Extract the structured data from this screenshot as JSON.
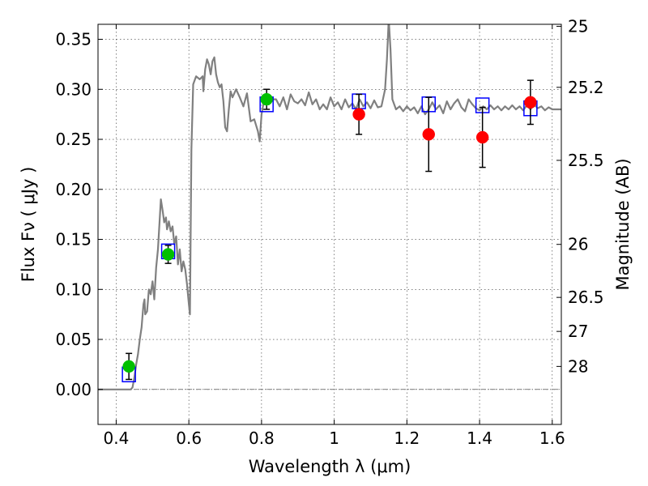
{
  "chart_data": {
    "type": "scatter",
    "xlabel": "Wavelength  λ (μm)",
    "ylabel": "Flux  Fν  ( μJy )",
    "ylabel_right": "Magnitude (AB)",
    "xlim": [
      0.35,
      1.625
    ],
    "ylim": [
      -0.035,
      0.365
    ],
    "grid": true,
    "x_ticks": [
      0.4,
      0.6,
      0.8,
      1.0,
      1.2,
      1.4,
      1.6
    ],
    "x_tick_labels": [
      "0.4",
      "0.6",
      "0.8",
      "1",
      "1.2",
      "1.4",
      "1.6"
    ],
    "y_ticks": [
      0.0,
      0.05,
      0.1,
      0.15,
      0.2,
      0.25,
      0.3,
      0.35
    ],
    "y_tick_labels": [
      "0.00",
      "0.05",
      "0.10",
      "0.15",
      "0.20",
      "0.25",
      "0.30",
      "0.35"
    ],
    "right_ticks": [
      {
        "label": "25",
        "flux": 0.363
      },
      {
        "label": "25.2",
        "flux": 0.302
      },
      {
        "label": "25.5",
        "flux": 0.229
      },
      {
        "label": "26",
        "flux": 0.145
      },
      {
        "label": "26.5",
        "flux": 0.092
      },
      {
        "label": "27",
        "flux": 0.058
      },
      {
        "label": "28",
        "flux": 0.023
      }
    ],
    "series": [
      {
        "type": "line",
        "color": "#808080",
        "points": [
          [
            0.35,
            0
          ],
          [
            0.44,
            0
          ],
          [
            0.445,
            0.002
          ],
          [
            0.45,
            0.012
          ],
          [
            0.455,
            0.025
          ],
          [
            0.46,
            0.035
          ],
          [
            0.465,
            0.05
          ],
          [
            0.47,
            0.062
          ],
          [
            0.475,
            0.085
          ],
          [
            0.478,
            0.09
          ],
          [
            0.48,
            0.075
          ],
          [
            0.485,
            0.078
          ],
          [
            0.49,
            0.1
          ],
          [
            0.495,
            0.095
          ],
          [
            0.5,
            0.108
          ],
          [
            0.505,
            0.09
          ],
          [
            0.51,
            0.122
          ],
          [
            0.515,
            0.14
          ],
          [
            0.52,
            0.172
          ],
          [
            0.523,
            0.19
          ],
          [
            0.528,
            0.178
          ],
          [
            0.532,
            0.167
          ],
          [
            0.537,
            0.172
          ],
          [
            0.54,
            0.16
          ],
          [
            0.545,
            0.168
          ],
          [
            0.55,
            0.158
          ],
          [
            0.555,
            0.163
          ],
          [
            0.56,
            0.145
          ],
          [
            0.565,
            0.153
          ],
          [
            0.57,
            0.125
          ],
          [
            0.575,
            0.14
          ],
          [
            0.58,
            0.118
          ],
          [
            0.585,
            0.128
          ],
          [
            0.59,
            0.12
          ],
          [
            0.595,
            0.105
          ],
          [
            0.6,
            0.085
          ],
          [
            0.603,
            0.075
          ],
          [
            0.607,
            0.24
          ],
          [
            0.612,
            0.305
          ],
          [
            0.62,
            0.313
          ],
          [
            0.63,
            0.31
          ],
          [
            0.638,
            0.313
          ],
          [
            0.64,
            0.298
          ],
          [
            0.645,
            0.32
          ],
          [
            0.65,
            0.33
          ],
          [
            0.655,
            0.325
          ],
          [
            0.66,
            0.315
          ],
          [
            0.665,
            0.328
          ],
          [
            0.67,
            0.332
          ],
          [
            0.675,
            0.315
          ],
          [
            0.68,
            0.307
          ],
          [
            0.685,
            0.302
          ],
          [
            0.69,
            0.305
          ],
          [
            0.695,
            0.288
          ],
          [
            0.7,
            0.262
          ],
          [
            0.705,
            0.258
          ],
          [
            0.71,
            0.28
          ],
          [
            0.715,
            0.298
          ],
          [
            0.72,
            0.292
          ],
          [
            0.73,
            0.3
          ],
          [
            0.74,
            0.292
          ],
          [
            0.75,
            0.283
          ],
          [
            0.76,
            0.296
          ],
          [
            0.77,
            0.268
          ],
          [
            0.78,
            0.27
          ],
          [
            0.79,
            0.258
          ],
          [
            0.795,
            0.248
          ],
          [
            0.8,
            0.275
          ],
          [
            0.81,
            0.295
          ],
          [
            0.82,
            0.285
          ],
          [
            0.83,
            0.29
          ],
          [
            0.84,
            0.29
          ],
          [
            0.85,
            0.283
          ],
          [
            0.86,
            0.292
          ],
          [
            0.87,
            0.28
          ],
          [
            0.88,
            0.295
          ],
          [
            0.89,
            0.288
          ],
          [
            0.9,
            0.286
          ],
          [
            0.91,
            0.29
          ],
          [
            0.92,
            0.284
          ],
          [
            0.93,
            0.297
          ],
          [
            0.94,
            0.285
          ],
          [
            0.95,
            0.29
          ],
          [
            0.96,
            0.28
          ],
          [
            0.97,
            0.285
          ],
          [
            0.98,
            0.28
          ],
          [
            0.99,
            0.292
          ],
          [
            1.0,
            0.283
          ],
          [
            1.01,
            0.287
          ],
          [
            1.02,
            0.28
          ],
          [
            1.03,
            0.29
          ],
          [
            1.04,
            0.282
          ],
          [
            1.05,
            0.286
          ],
          [
            1.06,
            0.28
          ],
          [
            1.07,
            0.29
          ],
          [
            1.08,
            0.283
          ],
          [
            1.09,
            0.287
          ],
          [
            1.1,
            0.281
          ],
          [
            1.11,
            0.289
          ],
          [
            1.12,
            0.282
          ],
          [
            1.13,
            0.283
          ],
          [
            1.14,
            0.3
          ],
          [
            1.145,
            0.33
          ],
          [
            1.15,
            0.37
          ],
          [
            1.155,
            0.34
          ],
          [
            1.16,
            0.29
          ],
          [
            1.17,
            0.28
          ],
          [
            1.18,
            0.283
          ],
          [
            1.19,
            0.278
          ],
          [
            1.2,
            0.283
          ],
          [
            1.21,
            0.279
          ],
          [
            1.22,
            0.282
          ],
          [
            1.23,
            0.276
          ],
          [
            1.24,
            0.283
          ],
          [
            1.25,
            0.275
          ],
          [
            1.26,
            0.28
          ],
          [
            1.27,
            0.287
          ],
          [
            1.28,
            0.28
          ],
          [
            1.29,
            0.284
          ],
          [
            1.3,
            0.276
          ],
          [
            1.31,
            0.288
          ],
          [
            1.32,
            0.28
          ],
          [
            1.33,
            0.286
          ],
          [
            1.34,
            0.29
          ],
          [
            1.35,
            0.282
          ],
          [
            1.36,
            0.278
          ],
          [
            1.37,
            0.29
          ],
          [
            1.38,
            0.285
          ],
          [
            1.39,
            0.281
          ],
          [
            1.4,
            0.279
          ],
          [
            1.41,
            0.283
          ],
          [
            1.42,
            0.28
          ],
          [
            1.43,
            0.284
          ],
          [
            1.44,
            0.28
          ],
          [
            1.45,
            0.283
          ],
          [
            1.46,
            0.279
          ],
          [
            1.47,
            0.283
          ],
          [
            1.48,
            0.28
          ],
          [
            1.49,
            0.284
          ],
          [
            1.5,
            0.28
          ],
          [
            1.51,
            0.283
          ],
          [
            1.52,
            0.279
          ],
          [
            1.53,
            0.284
          ],
          [
            1.54,
            0.28
          ],
          [
            1.55,
            0.285
          ],
          [
            1.56,
            0.281
          ],
          [
            1.57,
            0.283
          ],
          [
            1.58,
            0.279
          ],
          [
            1.59,
            0.282
          ],
          [
            1.6,
            0.28
          ],
          [
            1.625,
            0.28
          ]
        ]
      },
      {
        "type": "model_points",
        "marker": "square",
        "color": "#0000ff",
        "x": [
          0.435,
          0.543,
          0.814,
          1.068,
          1.26,
          1.408,
          1.54
        ],
        "y": [
          0.015,
          0.138,
          0.285,
          0.288,
          0.285,
          0.284,
          0.281
        ]
      },
      {
        "type": "scatter",
        "marker": "circle",
        "color": "#00c000",
        "x": [
          0.435,
          0.543,
          0.814
        ],
        "y": [
          0.023,
          0.135,
          0.29
        ],
        "yerr": [
          0.013,
          0.009,
          0.01
        ]
      },
      {
        "type": "scatter",
        "marker": "circle",
        "color": "#ff0000",
        "x": [
          1.068,
          1.26,
          1.408,
          1.54
        ],
        "y": [
          0.275,
          0.255,
          0.252,
          0.287
        ],
        "yerr": [
          0.02,
          0.037,
          0.03,
          0.022
        ]
      }
    ]
  }
}
